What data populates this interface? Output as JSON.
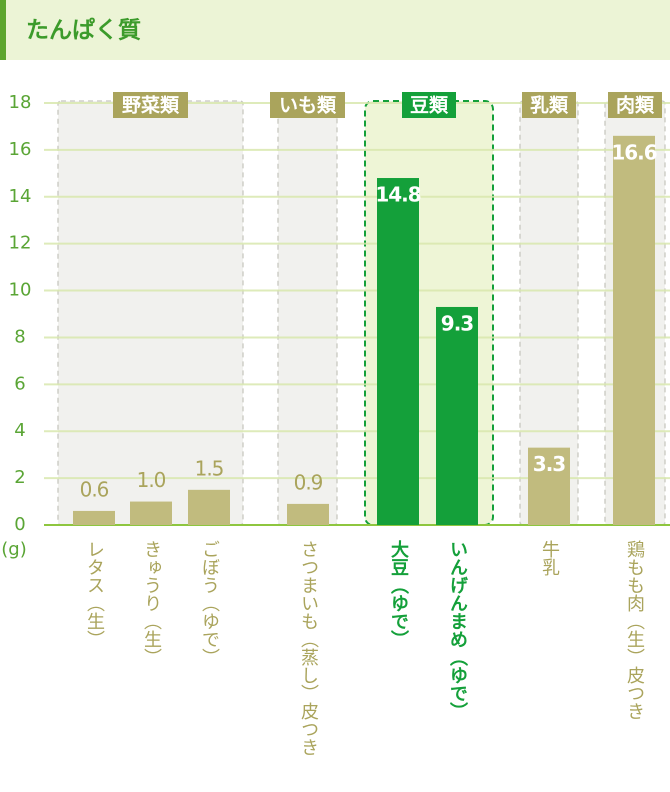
{
  "chart_data": {
    "type": "bar",
    "title": "たんぱく質",
    "unit_label": "(g)",
    "ylim": [
      0,
      18
    ],
    "yticks": [
      0,
      2,
      4,
      6,
      8,
      10,
      12,
      14,
      16,
      18
    ],
    "grid": true,
    "groups": [
      {
        "label": "野菜類",
        "color": "#c1bb7e",
        "highlighted": false,
        "categories": [
          "レタス（生）",
          "きゅうり（生）",
          "ごぼう（ゆで）"
        ],
        "values": [
          0.6,
          1.0,
          1.5
        ],
        "value_labels": [
          "0.6",
          "1.0",
          "1.5"
        ]
      },
      {
        "label": "いも類",
        "color": "#c1bb7e",
        "highlighted": false,
        "categories": [
          "さつまいも（蒸し）皮つき"
        ],
        "values": [
          0.9
        ],
        "value_labels": [
          "0.9"
        ]
      },
      {
        "label": "豆類",
        "color": "#14a03a",
        "highlighted": true,
        "categories": [
          "大豆（ゆで）",
          "いんげんまめ（ゆで）"
        ],
        "values": [
          14.8,
          9.3
        ],
        "value_labels": [
          "14.8",
          "9.3"
        ]
      },
      {
        "label": "乳類",
        "color": "#c1bb7e",
        "highlighted": false,
        "categories": [
          "牛乳"
        ],
        "values": [
          3.3
        ],
        "value_labels": [
          "3.3"
        ]
      },
      {
        "label": "肉類",
        "color": "#c1bb7e",
        "highlighted": false,
        "categories": [
          "鶏もも肉（生）皮つき"
        ],
        "values": [
          16.6
        ],
        "value_labels": [
          "16.6"
        ]
      }
    ]
  }
}
